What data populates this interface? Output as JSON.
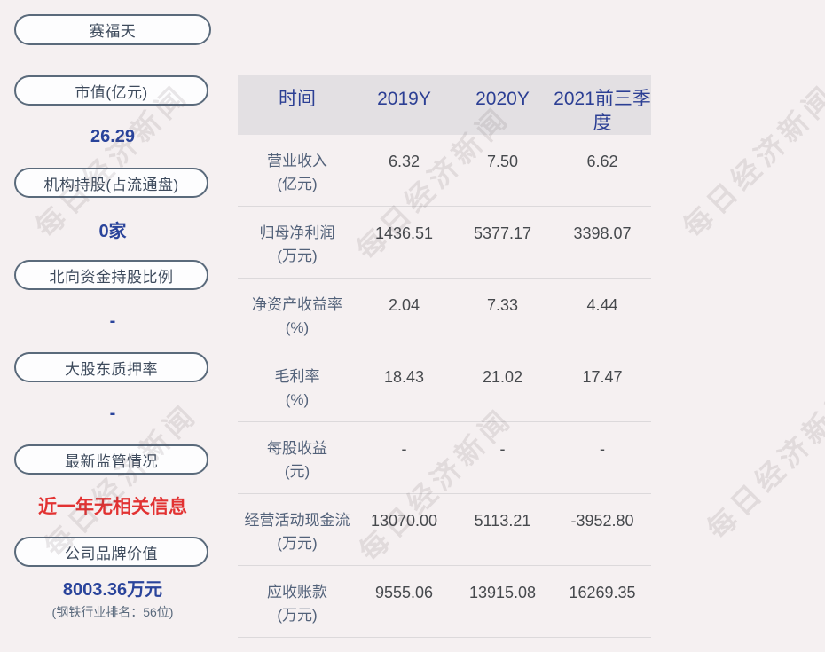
{
  "card": {
    "company_name": "赛福天",
    "watermark_text": "每日经济新闻"
  },
  "colors": {
    "background": "#f5f0f1",
    "accent_blue": "#2a449b",
    "alert_red": "#e23232",
    "pill_border": "#5a6a7b",
    "table_header_bg": "#e3e0e3",
    "table_header_text": "#2c3f94",
    "table_label_text": "#53627a",
    "table_value_text": "#46494d"
  },
  "sidebar": {
    "items": [
      {
        "label": "市值(亿元)",
        "value": "26.29",
        "style": "blue"
      },
      {
        "label": "机构持股(占流通盘)",
        "value": "0家",
        "style": "blue"
      },
      {
        "label": "北向资金持股比例",
        "value": "-",
        "style": "blue"
      },
      {
        "label": "大股东质押率",
        "value": "-",
        "style": "blue"
      },
      {
        "label": "最新监管情况",
        "value": "近一年无相关信息",
        "style": "red"
      },
      {
        "label": "公司品牌价值",
        "value": "8003.36万元",
        "style": "blue",
        "sub": "(钢铁行业排名：56位)"
      }
    ]
  },
  "chart_data": {
    "type": "table",
    "columns": [
      "时间",
      "2019Y",
      "2020Y",
      "2021前三季度"
    ],
    "rows": [
      {
        "label": "营业收入",
        "unit": "(亿元)",
        "values": [
          "6.32",
          "7.50",
          "6.62"
        ]
      },
      {
        "label": "归母净利润",
        "unit": "(万元)",
        "values": [
          "1436.51",
          "5377.17",
          "3398.07"
        ]
      },
      {
        "label": "净资产收益率",
        "unit": "(%)",
        "values": [
          "2.04",
          "7.33",
          "4.44"
        ]
      },
      {
        "label": "毛利率",
        "unit": "(%)",
        "values": [
          "18.43",
          "21.02",
          "17.47"
        ]
      },
      {
        "label": "每股收益",
        "unit": "(元)",
        "values": [
          "-",
          "-",
          "-"
        ]
      },
      {
        "label": "经营活动现金流",
        "unit": "(万元)",
        "values": [
          "13070.00",
          "5113.21",
          "-3952.80"
        ]
      },
      {
        "label": "应收账款",
        "unit": "(万元)",
        "values": [
          "9555.06",
          "13915.08",
          "16269.35"
        ]
      }
    ]
  }
}
